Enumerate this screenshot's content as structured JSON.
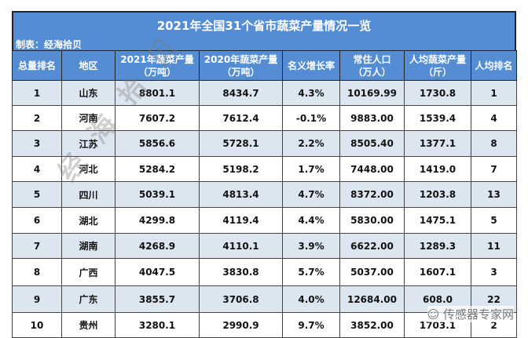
{
  "title": "2021年全国31个省市蔬菜产量情况一览",
  "subtitle": "制表：经海拾贝",
  "headers": [
    [
      "总量排名",
      ""
    ],
    [
      "地区",
      ""
    ],
    [
      "2021年蔬菜产量",
      "（万吨）"
    ],
    [
      "2020年蔬菜产量",
      "（万吨）"
    ],
    [
      "名义增长率",
      ""
    ],
    [
      "常住人口",
      "（万人）"
    ],
    [
      "人均蔬菜产量",
      "（斤）"
    ],
    [
      "人均排名",
      ""
    ]
  ],
  "rows": [
    [
      "1",
      "山东",
      "8801.1",
      "8434.7",
      "4.3%",
      "10169.99",
      "1730.8",
      "1"
    ],
    [
      "2",
      "河南",
      "7607.2",
      "7612.4",
      "-0.1%",
      "9883.00",
      "1539.4",
      "4"
    ],
    [
      "3",
      "江苏",
      "5856.6",
      "5728.1",
      "2.2%",
      "8505.40",
      "1377.1",
      "8"
    ],
    [
      "4",
      "河北",
      "5284.2",
      "5198.2",
      "1.7%",
      "7448.00",
      "1419.0",
      "7"
    ],
    [
      "5",
      "四川",
      "5039.1",
      "4813.4",
      "4.7%",
      "8372.00",
      "1203.8",
      "13"
    ],
    [
      "6",
      "湖北",
      "4299.8",
      "4119.4",
      "4.4%",
      "5830.00",
      "1475.1",
      "5"
    ],
    [
      "7",
      "湖南",
      "4268.9",
      "4110.1",
      "3.9%",
      "6622.00",
      "1289.3",
      "11"
    ],
    [
      "8",
      "广西",
      "4047.5",
      "3830.8",
      "5.7%",
      "5037.00",
      "1607.1",
      "3"
    ],
    [
      "9",
      "广东",
      "3855.7",
      "3706.8",
      "4.0%",
      "12684.00",
      "608.0",
      "22"
    ],
    [
      "10",
      "贵州",
      "3280.1",
      "2990.9",
      "9.7%",
      "3852.00",
      "1703.1",
      "2"
    ]
  ],
  "watermark": "经海拾贝",
  "logo": "传感器专家网",
  "colors": {
    "header": "#548dd4",
    "row_alt": "#dce6f1"
  }
}
